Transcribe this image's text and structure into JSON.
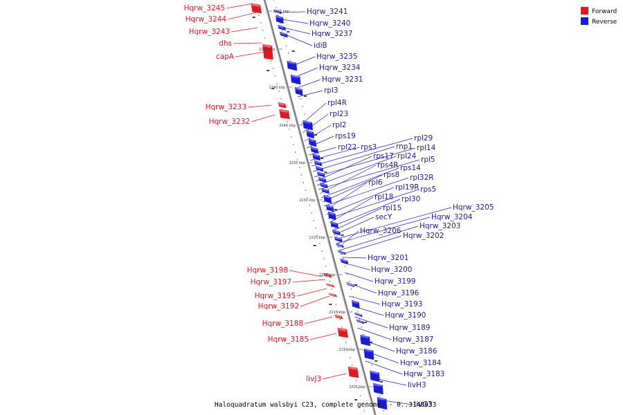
{
  "title": "Haloquadratum walsbyi C23, complete genome. - 0..3148033",
  "legend": {
    "forward_label": "Forward",
    "reverse_label": "Reverse",
    "forward_color": "#e8141e",
    "reverse_color": "#1a1ae6"
  },
  "ticks": [
    "2255 kbp",
    "2250 kbp",
    "2245 kbp",
    "2240 kbp",
    "2235 kbp",
    "2230 kbp",
    "2225 kbp",
    "2220 kbp",
    "2215 kbp",
    "2210 kbp",
    "2205 kbp"
  ],
  "forward_genes": [
    "Hqrw_3245",
    "Hqrw_3244",
    "Hqrw_3243",
    "dhs",
    "capA",
    "Hqrw_3233",
    "Hqrw_3232",
    "Hqrw_3198",
    "Hqrw_3197",
    "Hqrw_3195",
    "Hqrw_3192",
    "Hqrw_3188",
    "Hqrw_3185",
    "livJ3"
  ],
  "reverse_genes": [
    "Hqrw_3241",
    "Hqrw_3240",
    "Hqrw_3237",
    "idiB",
    "Hqrw_3235",
    "Hqrw_3234",
    "Hqrw_3231",
    "rpl3",
    "rpl4R",
    "rpl23",
    "rpl2",
    "rps19",
    "rpl22",
    "rps3",
    "rpl29",
    "rnp1",
    "rpl14",
    "rps17",
    "rpl24",
    "rpl5",
    "rps4R",
    "rps14",
    "rps8",
    "rpl32R",
    "rpl6",
    "rpl19R",
    "rps5",
    "rpl18",
    "rpl30",
    "rpl15",
    "secY",
    "Hqrw_3205",
    "Hqrw_3204",
    "Hqrw_3206",
    "Hqrw_3203",
    "Hqrw_3202",
    "Hqrw_3201",
    "Hqrw_3200",
    "Hqrw_3199",
    "Hqrw_3196",
    "Hqrw_3193",
    "Hqrw_3190",
    "Hqrw_3189",
    "Hqrw_3187",
    "Hqrw_3186",
    "Hqrw_3184",
    "Hqrw_3183",
    "livH3",
    "livG3"
  ]
}
